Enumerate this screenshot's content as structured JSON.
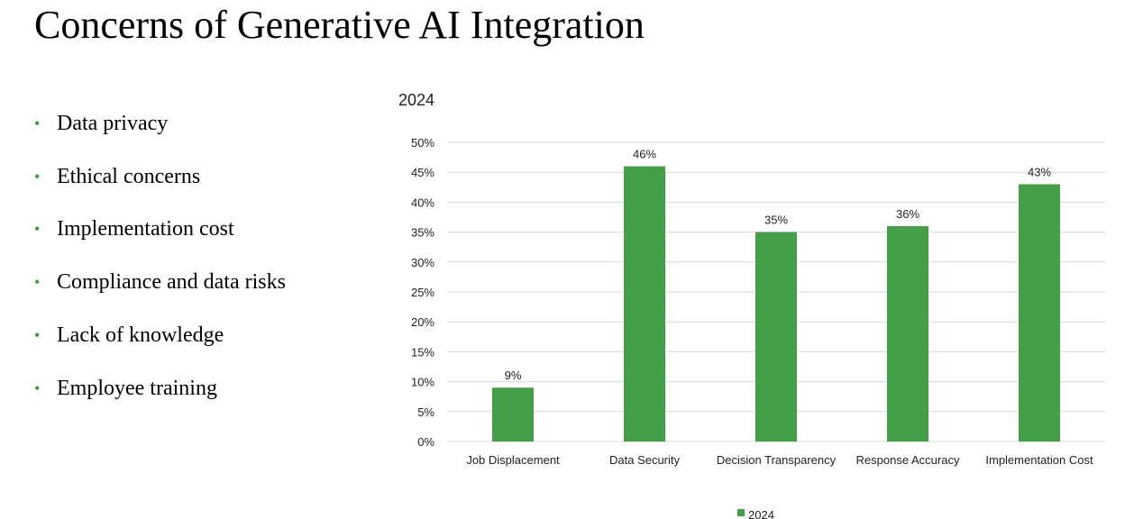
{
  "slide": {
    "title": "Concerns of Generative AI Integration",
    "bullets": [
      "Data privacy",
      "Ethical concerns",
      "Implementation cost",
      "Compliance and data risks",
      "Lack of knowledge",
      "Employee training"
    ],
    "bullet_color": "#3a9a3e"
  },
  "chart_data": {
    "type": "bar",
    "title": "2024",
    "categories": [
      "Job Displacement",
      "Data Security",
      "Decision Transparency",
      "Response Accuracy",
      "Implementation Cost"
    ],
    "series": [
      {
        "name": "2024",
        "values": [
          9,
          46,
          35,
          36,
          43
        ],
        "color": "#43a047"
      }
    ],
    "data_labels": [
      "9%",
      "46%",
      "35%",
      "36%",
      "43%"
    ],
    "y_ticks": [
      "0%",
      "5%",
      "10%",
      "15%",
      "20%",
      "25%",
      "30%",
      "35%",
      "40%",
      "45%",
      "50%"
    ],
    "ylim": [
      0,
      50
    ],
    "xlabel": "",
    "ylabel": "",
    "grid": true,
    "legend": "bottom"
  }
}
